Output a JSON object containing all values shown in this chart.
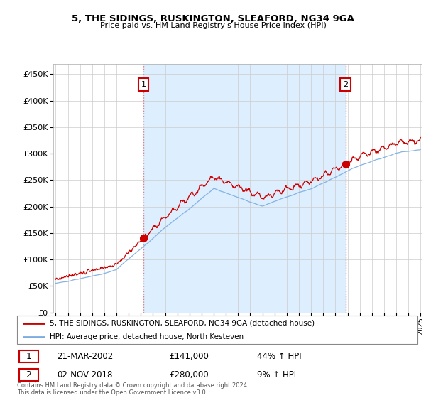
{
  "title": "5, THE SIDINGS, RUSKINGTON, SLEAFORD, NG34 9GA",
  "subtitle": "Price paid vs. HM Land Registry's House Price Index (HPI)",
  "legend_line1": "5, THE SIDINGS, RUSKINGTON, SLEAFORD, NG34 9GA (detached house)",
  "legend_line2": "HPI: Average price, detached house, North Kesteven",
  "annotation1_label": "1",
  "annotation1_date": "21-MAR-2002",
  "annotation1_price": "£141,000",
  "annotation1_hpi": "44% ↑ HPI",
  "annotation2_label": "2",
  "annotation2_date": "02-NOV-2018",
  "annotation2_price": "£280,000",
  "annotation2_hpi": "9% ↑ HPI",
  "footer": "Contains HM Land Registry data © Crown copyright and database right 2024.\nThis data is licensed under the Open Government Licence v3.0.",
  "red_color": "#cc0000",
  "blue_color": "#7aace0",
  "shade_color": "#ddeeff",
  "vline_color": "#e08080",
  "ylim": [
    0,
    470000
  ],
  "yticks": [
    0,
    50000,
    100000,
    150000,
    200000,
    250000,
    300000,
    350000,
    400000,
    450000
  ],
  "sale1_year": 2002.22,
  "sale1_price": 141000,
  "sale2_year": 2018.84,
  "sale2_price": 280000,
  "start_year": 1995,
  "end_year": 2025
}
